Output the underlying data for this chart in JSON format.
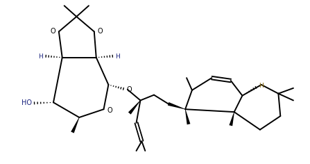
{
  "bg_color": "#ffffff",
  "line_color": "#000000",
  "lw": 1.4,
  "figsize": [
    4.47,
    2.36
  ],
  "dpi": 100,
  "label_HO": "HO",
  "label_O": "O",
  "label_H_left": "H",
  "label_H_right": "H",
  "label_H_terpene": "H",
  "color_HO": "#1a237e",
  "color_H": "#1a237e",
  "color_H_terpene": "#7b5c00",
  "color_O": "#000000",
  "color_text": "#000000"
}
